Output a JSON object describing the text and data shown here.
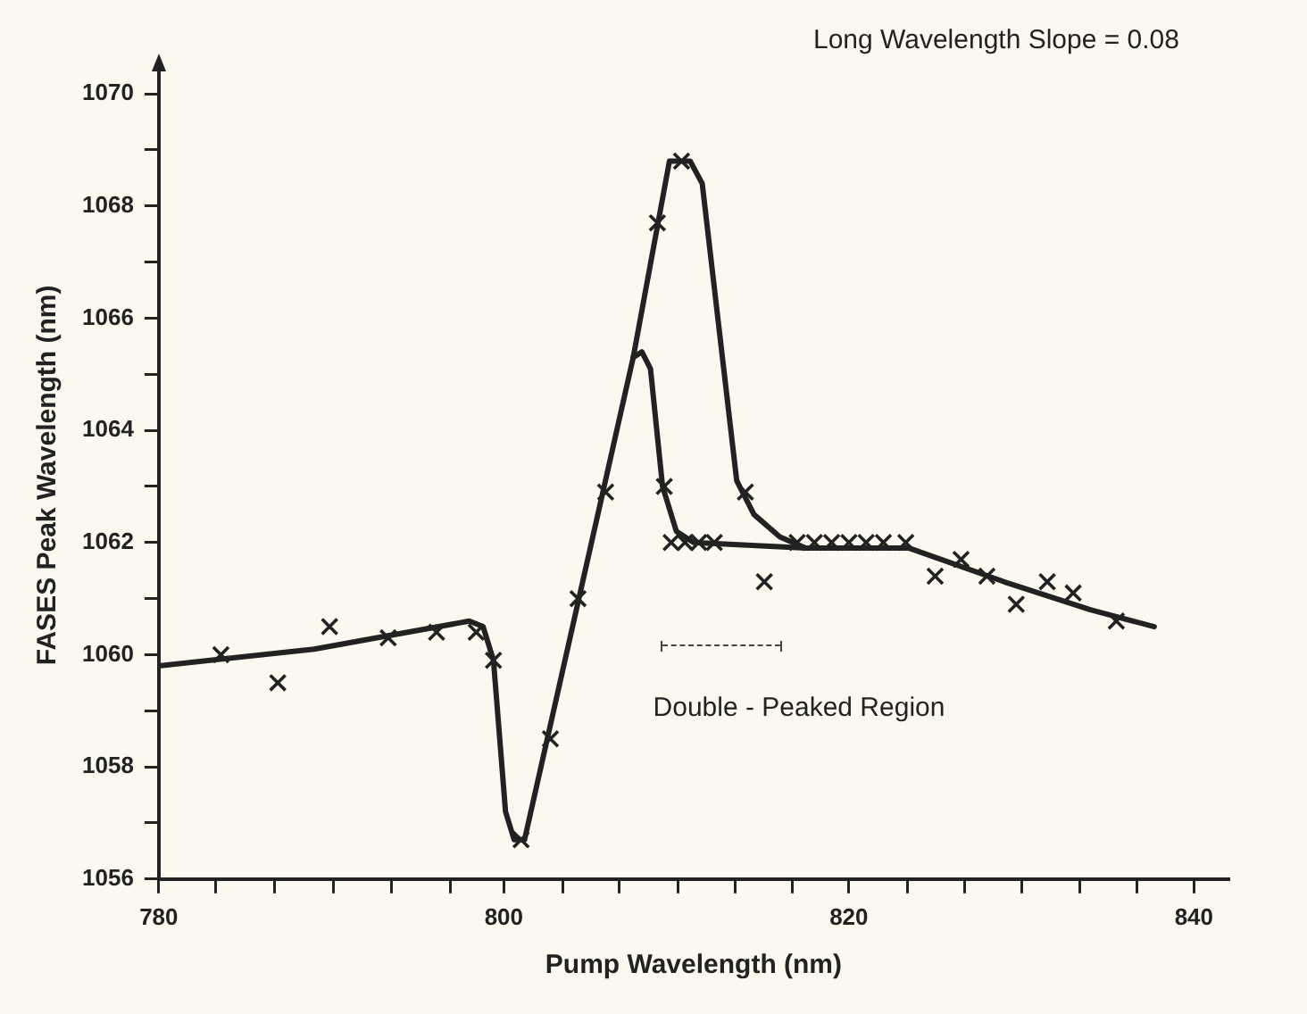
{
  "chart_data": {
    "type": "scatter",
    "xlabel": "Pump Wavelength (nm)",
    "ylabel": "FASES Peak Wavelength (nm)",
    "annotations": [
      "Long Wavelength Slope = 0.08",
      "Double - Peaked Region"
    ],
    "xlim": [
      780,
      842
    ],
    "ylim": [
      1056,
      1070.4
    ],
    "xticks": [
      780,
      {
        "value": 783.3,
        "label": null
      },
      {
        "value": 786.7,
        "label": null
      },
      {
        "value": 790.1,
        "label": null
      },
      {
        "value": 793.5,
        "label": null
      },
      {
        "value": 796.9,
        "label": null
      },
      800,
      {
        "value": 803.4,
        "label": null
      },
      {
        "value": 806.7,
        "label": null
      },
      {
        "value": 810.1,
        "label": null
      },
      {
        "value": 813.4,
        "label": null
      },
      {
        "value": 816.7,
        "label": null
      },
      820,
      {
        "value": 823.4,
        "label": null
      },
      {
        "value": 826.7,
        "label": null
      },
      {
        "value": 830,
        "label": null
      },
      {
        "value": 833.4,
        "label": null
      },
      {
        "value": 836.7,
        "label": null
      },
      840
    ],
    "yticks": [
      1056,
      {
        "value": 1057,
        "label": null
      },
      1058,
      {
        "value": 1059,
        "label": null
      },
      1060,
      {
        "value": 1061,
        "label": null
      },
      1062,
      {
        "value": 1063,
        "label": null
      },
      1064,
      {
        "value": 1065,
        "label": null
      },
      1066,
      {
        "value": 1067,
        "label": null
      },
      1068,
      {
        "value": 1069,
        "label": null
      },
      1070
    ],
    "grid": false,
    "legend": false,
    "series": [
      {
        "marker": "cross",
        "color": "#222222",
        "x": [
          783.6,
          786.9,
          789.9,
          793.3,
          796.1,
          798.4,
          799.4,
          801.0,
          802.7,
          804.3,
          805.9,
          808.9,
          810.3,
          809.3,
          809.7,
          810.5,
          811.3,
          812.2,
          814.0,
          815.1,
          817,
          818,
          819,
          820,
          821,
          822,
          823.3,
          825,
          826.5,
          828,
          829.7,
          831.5,
          833,
          835.5
        ],
        "values": [
          1060.0,
          1059.5,
          1060.5,
          1060.3,
          1060.4,
          1060.4,
          1059.9,
          1056.7,
          1058.5,
          1061.0,
          1062.9,
          1067.7,
          1068.8,
          1063.0,
          1062.0,
          1062.0,
          1062.0,
          1062.0,
          1062.9,
          1061.3,
          1062.0,
          1062.0,
          1062.0,
          1062.0,
          1062.0,
          1062.0,
          1062.0,
          1061.4,
          1061.7,
          1061.4,
          1060.9,
          1061.3,
          1061.1,
          1060.6
        ]
      },
      {
        "type": "line",
        "marker": "none",
        "color": "#222222",
        "x": [
          780,
          789,
          798,
          798.8,
          799.4,
          800.1,
          800.6,
          801.2,
          807.5,
          809.6,
          810.8,
          811.5,
          813.5,
          814.5,
          816,
          817.5,
          823.5,
          829,
          834,
          837.7
        ],
        "values": [
          1059.8,
          1060.1,
          1060.6,
          1060.5,
          1059.9,
          1057.2,
          1056.7,
          1056.7,
          1065.3,
          1068.8,
          1068.8,
          1068.4,
          1063.1,
          1062.5,
          1062.1,
          1061.9,
          1061.9,
          1061.3,
          1060.8,
          1060.5
        ]
      },
      {
        "type": "line",
        "marker": "none",
        "color": "#222222",
        "x": [
          807.5,
          808,
          808.5,
          809.2,
          810,
          811,
          817.5
        ],
        "values": [
          1065.3,
          1065.4,
          1065.1,
          1063.0,
          1062.2,
          1062.0,
          1061.9
        ]
      }
    ]
  }
}
